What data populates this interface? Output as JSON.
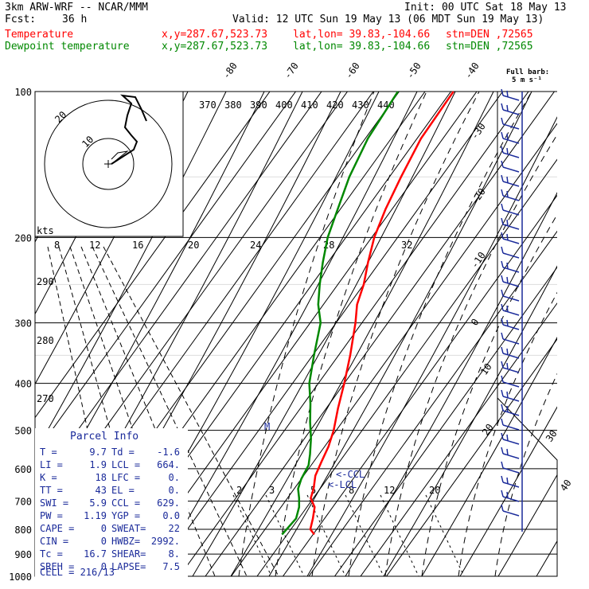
{
  "header": {
    "model": "3km ARW-WRF -- NCAR/MMM",
    "init": "Init: 00 UTC Sat 18 May 13",
    "fcst_label": "Fcst:",
    "fcst_value": "36 h",
    "valid": "Valid: 12 UTC Sun 19 May 13 (06 MDT Sun 19 May 13)",
    "temp_line": {
      "label": "Temperature",
      "xy": "x,y=287.67,523.73",
      "latlon": "lat,lon= 39.83,-104.66",
      "stn": "stn=DEN ,72565",
      "color": "#ff0000"
    },
    "dew_line": {
      "label": "Dewpoint temperature",
      "xy": "x,y=287.67,523.73",
      "latlon": "lat,lon= 39.83,-104.66",
      "stn": "stn=DEN ,72565",
      "color": "#008800"
    }
  },
  "barb_legend": {
    "line1": "Full barb:",
    "line2": "5 m s⁻¹"
  },
  "parcel": {
    "title": "Parcel Info",
    "rows": [
      [
        "T  =",
        "9.7",
        "Td =",
        "-1.6"
      ],
      [
        "LI =",
        "1.9",
        "LCL =",
        "664."
      ],
      [
        "K  =",
        "18",
        "LFC =",
        "0."
      ],
      [
        "TT =",
        "43",
        "EL  =",
        "0."
      ],
      [
        "SWI =",
        "5.9",
        "CCL =",
        "629."
      ],
      [
        "PW =",
        "1.19",
        "YGP =",
        "0.0"
      ],
      [
        "CAPE =",
        "0",
        "SWEAT=",
        "22"
      ],
      [
        "CIN =",
        "0",
        "HWBZ=",
        "2992."
      ],
      [
        "Tc =",
        "16.7",
        "SHEAR=",
        "8."
      ],
      [
        "SREH =",
        "0",
        "LAPSE=",
        "7.5"
      ]
    ],
    "cell": "CELL = 216/13"
  },
  "chart_data": {
    "type": "line",
    "title": "",
    "y_axis": {
      "label": "",
      "scale": "log",
      "ticks": [
        100,
        200,
        300,
        400,
        500,
        600,
        700,
        800,
        900,
        1000
      ],
      "range": [
        1000,
        100
      ]
    },
    "x_axis": {
      "isotherm_labels": [
        -80,
        -70,
        -60,
        -50,
        -40,
        -30,
        -20,
        -10,
        0,
        10,
        20,
        30,
        40
      ]
    },
    "theta_e_labels": [
      370,
      380,
      390,
      400,
      410,
      420,
      430,
      440
    ],
    "theta_labels": [
      290,
      280,
      270
    ],
    "mixing_ratio_labels": [
      2,
      3,
      5,
      8,
      12,
      20
    ],
    "hodograph": {
      "units": "kts",
      "rings": [
        8,
        12,
        16,
        20,
        24,
        28,
        32
      ]
    },
    "annotations": [
      "CCL",
      "LCL"
    ],
    "series": [
      {
        "name": "Temperature",
        "color": "#ff0000",
        "points": [
          [
            820,
            10.5
          ],
          [
            800,
            7.5
          ],
          [
            760,
            5.5
          ],
          [
            720,
            3.0
          ],
          [
            690,
            -1.0
          ],
          [
            660,
            -2.5
          ],
          [
            620,
            -5.5
          ],
          [
            580,
            -7.0
          ],
          [
            540,
            -8.5
          ],
          [
            500,
            -11.0
          ],
          [
            450,
            -15.5
          ],
          [
            400,
            -20.0
          ],
          [
            350,
            -25.5
          ],
          [
            300,
            -32.5
          ],
          [
            275,
            -37.0
          ],
          [
            250,
            -40.0
          ],
          [
            225,
            -44.5
          ],
          [
            200,
            -49.0
          ],
          [
            175,
            -52.5
          ],
          [
            150,
            -55.5
          ],
          [
            125,
            -58.5
          ],
          [
            100,
            -59.0
          ]
        ]
      },
      {
        "name": "Dewpoint temperature",
        "color": "#008800",
        "points": [
          [
            820,
            -2.0
          ],
          [
            790,
            -1.5
          ],
          [
            760,
            -1.0
          ],
          [
            720,
            -3.0
          ],
          [
            690,
            -5.5
          ],
          [
            660,
            -8.5
          ],
          [
            630,
            -10.0
          ],
          [
            590,
            -11.0
          ],
          [
            560,
            -13.5
          ],
          [
            520,
            -17.5
          ],
          [
            480,
            -22.5
          ],
          [
            440,
            -27.5
          ],
          [
            400,
            -33.5
          ],
          [
            350,
            -39.5
          ],
          [
            300,
            -46.0
          ],
          [
            275,
            -52.0
          ],
          [
            250,
            -57.0
          ],
          [
            225,
            -62.0
          ],
          [
            200,
            -67.0
          ],
          [
            175,
            -71.0
          ],
          [
            150,
            -75.5
          ],
          [
            125,
            -79.0
          ],
          [
            100,
            -80.5
          ]
        ]
      }
    ],
    "wind_barbs_color": "#1a2a9a"
  }
}
